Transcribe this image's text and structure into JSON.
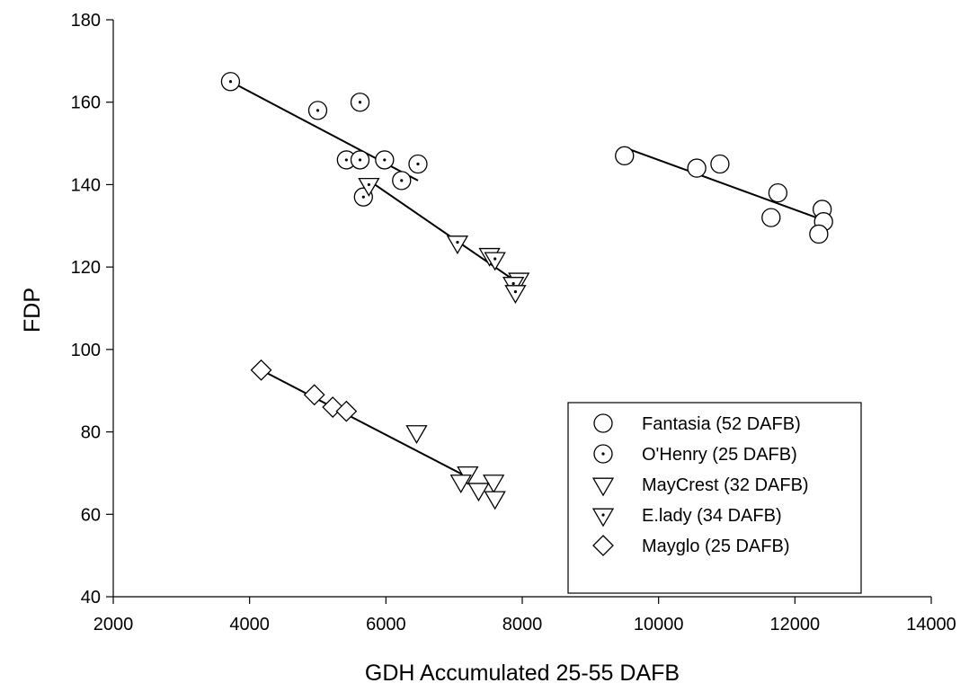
{
  "chart_data": {
    "type": "scatter",
    "title": "",
    "xlabel": "GDH Accumulated 25-55 DAFB",
    "ylabel": "FDP",
    "xlim": [
      2000,
      14000
    ],
    "ylim": [
      40,
      180
    ],
    "xticks": [
      2000,
      4000,
      6000,
      8000,
      10000,
      12000,
      14000
    ],
    "yticks": [
      40,
      60,
      80,
      100,
      120,
      140,
      160,
      180
    ],
    "grid": false,
    "legend_position": "bottom-right",
    "series": [
      {
        "name": "Fantasia (52 DAFB)",
        "marker": "circle",
        "points": [
          [
            9500,
            147
          ],
          [
            10560,
            144
          ],
          [
            10900,
            145
          ],
          [
            11750,
            138
          ],
          [
            11650,
            132
          ],
          [
            12400,
            134
          ],
          [
            12420,
            131
          ],
          [
            12350,
            128
          ]
        ],
        "trend": [
          [
            9500,
            149
          ],
          [
            12400,
            131.5
          ]
        ]
      },
      {
        "name": "O'Henry (25 DAFB)",
        "marker": "circle-dot",
        "points": [
          [
            3720,
            165
          ],
          [
            5000,
            158
          ],
          [
            5620,
            160
          ],
          [
            5420,
            146
          ],
          [
            5620,
            146
          ],
          [
            5980,
            146
          ],
          [
            6470,
            145
          ],
          [
            6230,
            141
          ],
          [
            5670,
            137
          ]
        ],
        "trend": [
          [
            3720,
            165
          ],
          [
            6470,
            141
          ]
        ]
      },
      {
        "name": "MayCrest (32 DAFB)",
        "marker": "triangle-down",
        "points": [
          [
            6450,
            80
          ],
          [
            7200,
            70
          ],
          [
            7100,
            68
          ],
          [
            7580,
            68
          ],
          [
            7360,
            66
          ],
          [
            7600,
            64
          ]
        ],
        "trend": null
      },
      {
        "name": "E.lady (34 DAFB)",
        "marker": "triangle-down-dot",
        "points": [
          [
            5750,
            140
          ],
          [
            7050,
            126
          ],
          [
            7520,
            123
          ],
          [
            7600,
            122
          ],
          [
            7950,
            117
          ],
          [
            7870,
            116
          ],
          [
            7900,
            114
          ]
        ],
        "trend": [
          [
            5750,
            141
          ],
          [
            7950,
            116
          ]
        ]
      },
      {
        "name": "Mayglo (25 DAFB)",
        "marker": "diamond",
        "points": [
          [
            4170,
            95
          ],
          [
            4950,
            89
          ],
          [
            5220,
            86
          ],
          [
            5420,
            85
          ]
        ],
        "trend": null
      }
    ],
    "extra_lines": [
      {
        "trend": [
          [
            4170,
            95
          ],
          [
            7200,
            69
          ]
        ]
      }
    ]
  }
}
